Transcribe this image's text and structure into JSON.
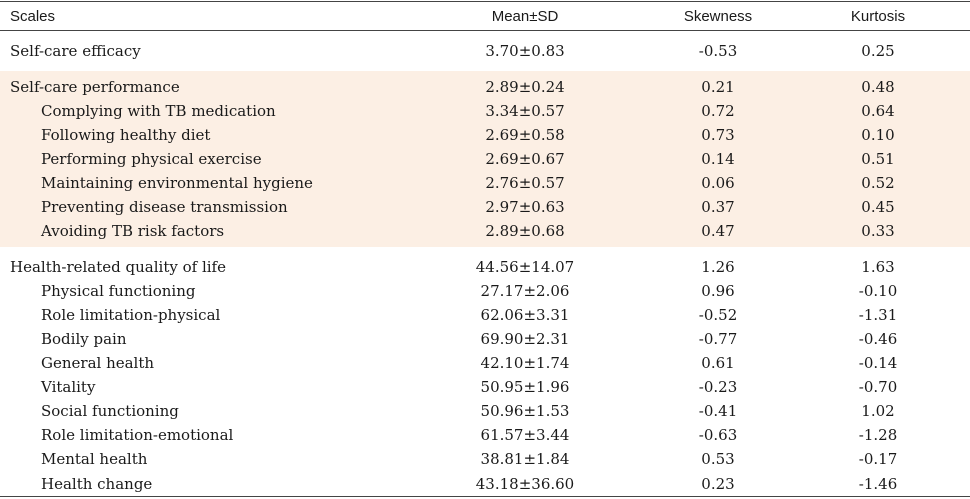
{
  "header": {
    "scales": "Scales",
    "mean_sd": "Mean±SD",
    "skewness": "Skewness",
    "kurtosis": "Kurtosis"
  },
  "self_care_efficacy": [
    {
      "name": "Self-care efficacy",
      "mean_sd": "3.70±0.83",
      "skewness": "-0.53",
      "kurtosis": "0.25"
    }
  ],
  "self_care_performance": [
    {
      "name": "Self-care performance",
      "mean_sd": "2.89±0.24",
      "skewness": "0.21",
      "kurtosis": "0.48"
    },
    {
      "name": "Complying with TB medication",
      "mean_sd": "3.34±0.57",
      "skewness": "0.72",
      "kurtosis": "0.64"
    },
    {
      "name": "Following healthy diet",
      "mean_sd": "2.69±0.58",
      "skewness": "0.73",
      "kurtosis": "0.10"
    },
    {
      "name": "Performing physical exercise",
      "mean_sd": "2.69±0.67",
      "skewness": "0.14",
      "kurtosis": "0.51"
    },
    {
      "name": "Maintaining environmental hygiene",
      "mean_sd": "2.76±0.57",
      "skewness": "0.06",
      "kurtosis": "0.52"
    },
    {
      "name": "Preventing disease transmission",
      "mean_sd": "2.97±0.63",
      "skewness": "0.37",
      "kurtosis": "0.45"
    },
    {
      "name": "Avoiding TB risk factors",
      "mean_sd": "2.89±0.68",
      "skewness": "0.47",
      "kurtosis": "0.33"
    }
  ],
  "hrqol": [
    {
      "name": "Health-related quality of life",
      "mean_sd": "44.56±14.07",
      "skewness": "1.26",
      "kurtosis": "1.63"
    },
    {
      "name": "Physical functioning",
      "mean_sd": "27.17±2.06",
      "skewness": "0.96",
      "kurtosis": "-0.10"
    },
    {
      "name": "Role limitation-physical",
      "mean_sd": "62.06±3.31",
      "skewness": "-0.52",
      "kurtosis": "-1.31"
    },
    {
      "name": "Bodily pain",
      "mean_sd": "69.90±2.31",
      "skewness": "-0.77",
      "kurtosis": "-0.46"
    },
    {
      "name": "General health",
      "mean_sd": "42.10±1.74",
      "skewness": "0.61",
      "kurtosis": "-0.14"
    },
    {
      "name": "Vitality",
      "mean_sd": "50.95±1.96",
      "skewness": "-0.23",
      "kurtosis": "-0.70"
    },
    {
      "name": "Social functioning",
      "mean_sd": "50.96±1.53",
      "skewness": "-0.41",
      "kurtosis": "1.02"
    },
    {
      "name": "Role limitation-emotional",
      "mean_sd": "61.57±3.44",
      "skewness": "-0.63",
      "kurtosis": "-1.28"
    },
    {
      "name": "Mental health",
      "mean_sd": "38.81±1.84",
      "skewness": "0.53",
      "kurtosis": "-0.17"
    },
    {
      "name": "Health change",
      "mean_sd": "43.18±36.60",
      "skewness": "0.23",
      "kurtosis": "-1.46"
    }
  ]
}
